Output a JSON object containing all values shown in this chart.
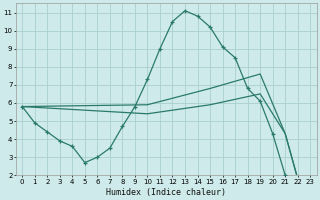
{
  "xlabel": "Humidex (Indice chaleur)",
  "background_color": "#ceeaea",
  "grid_color": "#aacfcf",
  "line_color": "#2a7a6a",
  "xlim": [
    -0.5,
    23.5
  ],
  "ylim": [
    2,
    11.5
  ],
  "xticks": [
    0,
    1,
    2,
    3,
    4,
    5,
    6,
    7,
    8,
    9,
    10,
    11,
    12,
    13,
    14,
    15,
    16,
    17,
    18,
    19,
    20,
    21,
    22,
    23
  ],
  "yticks": [
    2,
    3,
    4,
    5,
    6,
    7,
    8,
    9,
    10,
    11
  ],
  "curve_x": [
    0,
    1,
    2,
    3,
    4,
    5,
    6,
    7,
    8,
    9,
    10,
    11,
    12,
    13,
    14,
    15,
    16,
    17,
    18,
    19,
    20,
    21,
    22,
    23
  ],
  "curve_y": [
    5.8,
    4.9,
    4.4,
    3.9,
    3.6,
    2.7,
    3.0,
    3.5,
    4.7,
    5.8,
    7.3,
    9.0,
    10.5,
    11.1,
    10.8,
    10.2,
    9.1,
    8.5,
    6.8,
    6.1,
    4.3,
    2.0,
    1.8,
    1.6
  ],
  "line_upper_x": [
    0,
    10,
    15,
    19,
    21,
    22,
    23
  ],
  "line_upper_y": [
    5.8,
    5.9,
    6.8,
    7.6,
    4.3,
    1.8,
    1.6
  ],
  "line_lower_x": [
    0,
    10,
    15,
    19,
    21,
    22,
    23
  ],
  "line_lower_y": [
    5.8,
    5.4,
    5.9,
    6.5,
    4.3,
    1.8,
    1.6
  ]
}
